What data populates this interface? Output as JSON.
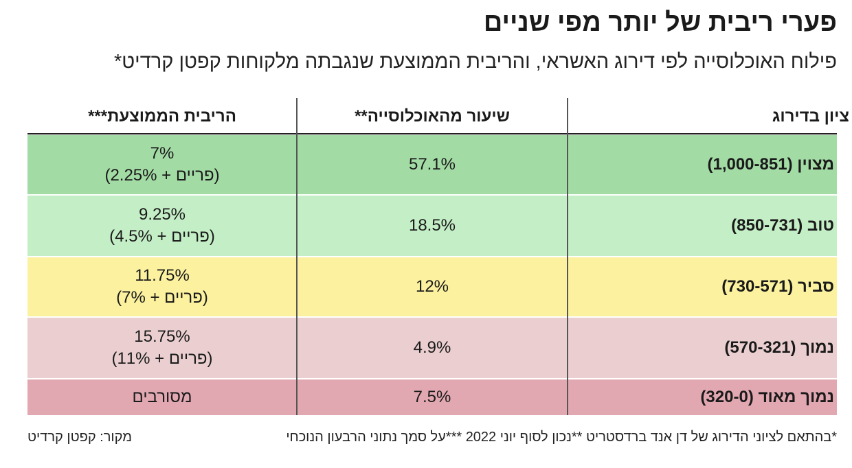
{
  "header": {
    "title": "פערי ריבית של יותר מפי שניים",
    "subtitle": "פילוח האוכלוסייה לפי דירוג האשראי, והריבית הממוצעת שנגבתה מלקוחות קפטן קרדיט*"
  },
  "table": {
    "headers": [
      "ציון בדירוג",
      "שיעור מהאוכלוסייה**",
      "הריבית הממוצעת***"
    ],
    "rows": [
      {
        "rating": "מצוין (1,000-851)",
        "share": "57.1%",
        "rate": [
          "7%",
          "(פריים + 2.25%)"
        ]
      },
      {
        "rating": "טוב (850-731)",
        "share": "18.5%",
        "rate": [
          "9.25%",
          "(פריים + 4.5%)"
        ]
      },
      {
        "rating": "סביר (730-571)",
        "share": "12%",
        "rate": [
          "11.75%",
          "(פריים + 7%)"
        ]
      },
      {
        "rating": "נמוך (570-321)",
        "share": "4.9%",
        "rate": [
          "15.75%",
          "(פריים + 11%)"
        ]
      },
      {
        "rating": "נמוך מאוד (320-0)",
        "share": "7.5%",
        "rate": [
          "מסורבים"
        ]
      }
    ]
  },
  "footer": {
    "note": "*בהתאם לציוני הדירוג של דן אנד ברדסטריט **נכון לסוף יוני 2022 ***על סמך נתוני הרבעון הנוכחי",
    "source": "מקור: קפטן קרדיט"
  }
}
